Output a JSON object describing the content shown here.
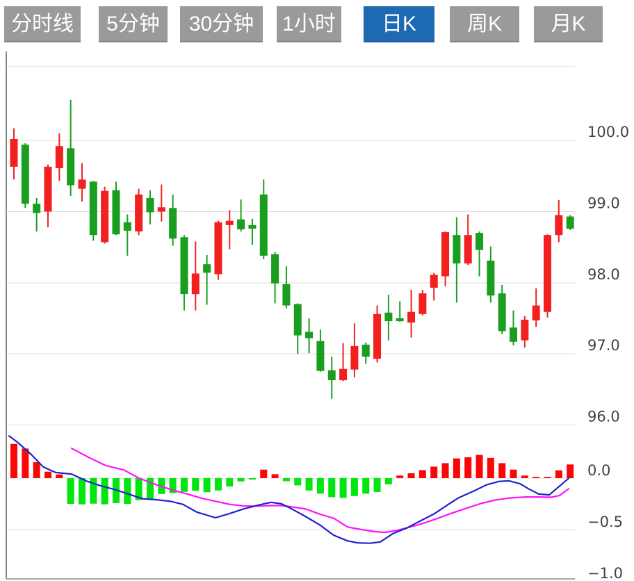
{
  "toolbar": {
    "tabs": [
      {
        "id": "timeline",
        "label": "分时线",
        "active": false
      },
      {
        "id": "5min",
        "label": "5分钟",
        "active": false
      },
      {
        "id": "30min",
        "label": "30分钟",
        "active": false
      },
      {
        "id": "1hour",
        "label": "1小时",
        "active": false
      },
      {
        "id": "daily-k",
        "label": "日K",
        "active": true
      },
      {
        "id": "weekly-k",
        "label": "周K",
        "active": false
      },
      {
        "id": "monthly-k",
        "label": "月K",
        "active": false
      }
    ]
  },
  "chart_data": {
    "type": "candlestick",
    "panes": [
      "price-candles",
      "macd-indicator"
    ],
    "grid": true,
    "legend": false,
    "price_axis": {
      "side": "right",
      "ticks": [
        100.0,
        99.0,
        98.0,
        97.0,
        96.0
      ],
      "labels": [
        "100.0",
        "99.0",
        "98.0",
        "97.0",
        "96.0"
      ],
      "range_shown": [
        96.0,
        101.0
      ]
    },
    "indicator_axis": {
      "side": "right",
      "ticks": [
        0.0,
        -0.5,
        -1.0
      ],
      "labels": [
        "0.0",
        "−0.5",
        "−1.0"
      ],
      "range_shown": [
        -1.0,
        0.55
      ]
    },
    "candles_ohlc": [
      [
        99.63,
        100.17,
        99.45,
        100.02
      ],
      [
        99.94,
        99.96,
        99.05,
        99.11
      ],
      [
        99.11,
        99.19,
        98.72,
        98.98
      ],
      [
        99.0,
        99.66,
        98.78,
        99.63
      ],
      [
        99.61,
        100.1,
        99.43,
        99.92
      ],
      [
        99.89,
        100.57,
        99.22,
        99.37
      ],
      [
        99.32,
        99.68,
        99.14,
        99.45
      ],
      [
        99.42,
        99.43,
        98.59,
        98.67
      ],
      [
        98.57,
        99.35,
        98.55,
        99.29
      ],
      [
        99.3,
        99.42,
        98.67,
        98.68
      ],
      [
        98.85,
        98.96,
        98.38,
        98.73
      ],
      [
        98.72,
        99.32,
        98.67,
        99.24
      ],
      [
        99.19,
        99.3,
        98.82,
        98.99
      ],
      [
        99.0,
        99.38,
        98.86,
        99.06
      ],
      [
        99.05,
        99.24,
        98.52,
        98.62
      ],
      [
        98.64,
        98.67,
        97.61,
        97.84
      ],
      [
        97.84,
        98.58,
        97.61,
        98.13
      ],
      [
        98.26,
        98.39,
        97.69,
        98.14
      ],
      [
        98.12,
        98.87,
        98.04,
        98.85
      ],
      [
        98.81,
        99.02,
        98.47,
        98.87
      ],
      [
        98.89,
        99.17,
        98.72,
        98.75
      ],
      [
        98.81,
        98.9,
        98.53,
        98.76
      ],
      [
        99.24,
        99.45,
        98.33,
        98.38
      ],
      [
        98.4,
        98.43,
        97.71,
        97.99
      ],
      [
        97.98,
        98.23,
        97.64,
        97.68
      ],
      [
        97.7,
        97.71,
        97.0,
        97.26
      ],
      [
        97.31,
        97.5,
        97.01,
        97.22
      ],
      [
        97.18,
        97.34,
        96.75,
        96.76
      ],
      [
        96.77,
        96.96,
        96.37,
        96.63
      ],
      [
        96.63,
        97.15,
        96.62,
        96.79
      ],
      [
        96.78,
        97.43,
        96.67,
        97.11
      ],
      [
        97.13,
        97.16,
        96.86,
        96.96
      ],
      [
        96.93,
        97.68,
        96.88,
        97.56
      ],
      [
        97.58,
        97.83,
        97.19,
        97.46
      ],
      [
        97.5,
        97.74,
        97.45,
        97.46
      ],
      [
        97.44,
        97.9,
        97.23,
        97.59
      ],
      [
        97.56,
        97.9,
        97.54,
        97.85
      ],
      [
        97.93,
        98.14,
        97.75,
        98.11
      ],
      [
        98.09,
        98.72,
        97.95,
        98.71
      ],
      [
        98.67,
        98.92,
        97.72,
        98.27
      ],
      [
        98.27,
        98.96,
        98.25,
        98.67
      ],
      [
        98.7,
        98.72,
        98.09,
        98.46
      ],
      [
        98.31,
        98.51,
        97.72,
        97.82
      ],
      [
        97.85,
        97.97,
        97.28,
        97.32
      ],
      [
        97.37,
        97.61,
        97.12,
        97.17
      ],
      [
        97.19,
        97.53,
        97.09,
        97.48
      ],
      [
        97.47,
        97.92,
        97.38,
        97.68
      ],
      [
        97.59,
        98.68,
        97.51,
        98.67
      ],
      [
        98.67,
        99.16,
        98.57,
        98.95
      ],
      [
        98.93,
        98.95,
        98.74,
        98.76
      ]
    ],
    "macd_histogram": [
      0.333,
      0.288,
      0.155,
      0.063,
      0.036,
      -0.25,
      -0.255,
      -0.248,
      -0.255,
      -0.243,
      -0.25,
      -0.214,
      -0.202,
      -0.154,
      -0.145,
      -0.133,
      -0.122,
      -0.137,
      -0.12,
      -0.081,
      -0.032,
      -0.014,
      0.083,
      0.038,
      -0.03,
      -0.07,
      -0.12,
      -0.151,
      -0.185,
      -0.192,
      -0.174,
      -0.151,
      -0.135,
      -0.06,
      0.025,
      0.048,
      0.078,
      0.112,
      0.146,
      0.192,
      0.203,
      0.226,
      0.197,
      0.146,
      0.083,
      0.025,
      0.012,
      0.012,
      0.076,
      0.133
    ],
    "dif_line_points": [
      [
        13,
        0.41
      ],
      [
        25,
        0.35
      ],
      [
        45,
        0.23
      ],
      [
        62,
        0.11
      ],
      [
        80,
        0.055
      ],
      [
        103,
        0.04
      ],
      [
        125,
        -0.03
      ],
      [
        145,
        -0.075
      ],
      [
        165,
        -0.11
      ],
      [
        185,
        -0.155
      ],
      [
        205,
        -0.2
      ],
      [
        225,
        -0.21
      ],
      [
        245,
        -0.225
      ],
      [
        263,
        -0.255
      ],
      [
        283,
        -0.33
      ],
      [
        310,
        -0.385
      ],
      [
        330,
        -0.345
      ],
      [
        350,
        -0.3
      ],
      [
        370,
        -0.265
      ],
      [
        390,
        -0.235
      ],
      [
        405,
        -0.25
      ],
      [
        420,
        -0.3
      ],
      [
        440,
        -0.375
      ],
      [
        460,
        -0.455
      ],
      [
        480,
        -0.555
      ],
      [
        500,
        -0.61
      ],
      [
        515,
        -0.63
      ],
      [
        532,
        -0.633
      ],
      [
        547,
        -0.62
      ],
      [
        565,
        -0.54
      ],
      [
        585,
        -0.485
      ],
      [
        605,
        -0.415
      ],
      [
        625,
        -0.345
      ],
      [
        645,
        -0.255
      ],
      [
        660,
        -0.19
      ],
      [
        680,
        -0.13
      ],
      [
        700,
        -0.065
      ],
      [
        718,
        -0.032
      ],
      [
        732,
        -0.026
      ],
      [
        748,
        -0.055
      ],
      [
        762,
        -0.11
      ],
      [
        775,
        -0.155
      ],
      [
        790,
        -0.163
      ],
      [
        818,
        -0.002
      ]
    ],
    "dea_line_points": [
      [
        103,
        0.29
      ],
      [
        128,
        0.2
      ],
      [
        153,
        0.12
      ],
      [
        178,
        0.08
      ],
      [
        200,
        0.0
      ],
      [
        215,
        -0.04
      ],
      [
        230,
        -0.075
      ],
      [
        250,
        -0.12
      ],
      [
        270,
        -0.155
      ],
      [
        290,
        -0.195
      ],
      [
        310,
        -0.225
      ],
      [
        330,
        -0.255
      ],
      [
        350,
        -0.27
      ],
      [
        370,
        -0.272
      ],
      [
        390,
        -0.267
      ],
      [
        405,
        -0.267
      ],
      [
        420,
        -0.28
      ],
      [
        440,
        -0.3
      ],
      [
        460,
        -0.35
      ],
      [
        480,
        -0.39
      ],
      [
        500,
        -0.475
      ],
      [
        520,
        -0.5
      ],
      [
        540,
        -0.52
      ],
      [
        553,
        -0.527
      ],
      [
        570,
        -0.51
      ],
      [
        590,
        -0.475
      ],
      [
        610,
        -0.437
      ],
      [
        630,
        -0.39
      ],
      [
        650,
        -0.34
      ],
      [
        670,
        -0.295
      ],
      [
        690,
        -0.25
      ],
      [
        710,
        -0.216
      ],
      [
        730,
        -0.195
      ],
      [
        755,
        -0.183
      ],
      [
        775,
        -0.183
      ],
      [
        793,
        -0.186
      ],
      [
        805,
        -0.168
      ],
      [
        818,
        -0.104
      ]
    ],
    "colors": {
      "bullish_candle": "#f32020",
      "bearish_candle": "#1a9e1f",
      "hist_positive": "#fd0505",
      "hist_negative": "#00e60e",
      "dif_line": "#2020cf",
      "dea_line": "#fb14fb",
      "grid_line": "#dcdcdc",
      "left_border": "#8a8a8a",
      "bottom_border": "#a9a9a9",
      "axis_label": "#41414b",
      "tab_bg": "#9a9a9a",
      "tab_active_bg": "#1d6ab3",
      "tab_text": "#ffffff"
    }
  }
}
